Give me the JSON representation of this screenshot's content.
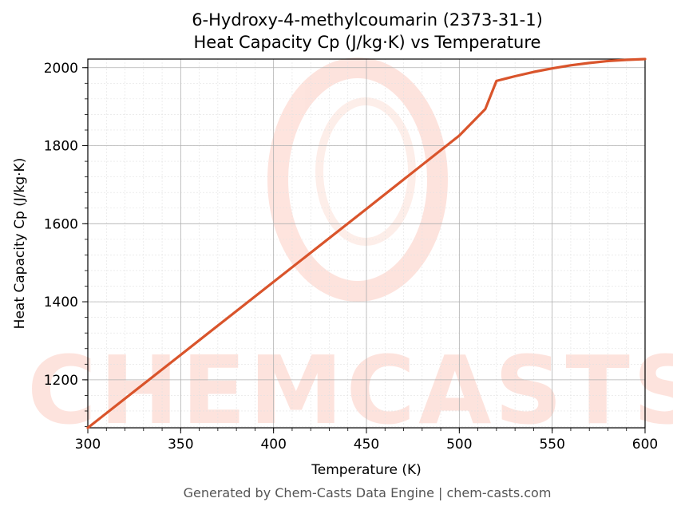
{
  "chart_data": {
    "type": "line",
    "title": "6-Hydroxy-4-methylcoumarin (2373-31-1)",
    "subtitle": "Heat Capacity Cp (J/kg·K) vs Temperature",
    "xlabel": "Temperature (K)",
    "ylabel": "Heat Capacity Cp (J/kg·K)",
    "xlim": [
      300,
      600
    ],
    "ylim": [
      1077,
      2022
    ],
    "x_ticks": [
      300,
      350,
      400,
      450,
      500,
      550,
      600
    ],
    "y_ticks": [
      1200,
      1400,
      1600,
      1800,
      2000
    ],
    "grid": true,
    "line_color": "#d9542b",
    "series": [
      {
        "x": [
          300,
          350,
          400,
          450,
          500,
          514,
          520,
          530,
          540,
          550,
          560,
          570,
          580,
          590,
          600
        ],
        "values": [
          1077,
          1264,
          1451,
          1638,
          1826,
          1894,
          1966,
          1978,
          1989,
          1998,
          2006,
          2012,
          2017,
          2020,
          2022
        ]
      }
    ],
    "watermark": "CHEMCASTS",
    "footer": "Generated by Chem-Casts Data Engine | chem-casts.com"
  }
}
